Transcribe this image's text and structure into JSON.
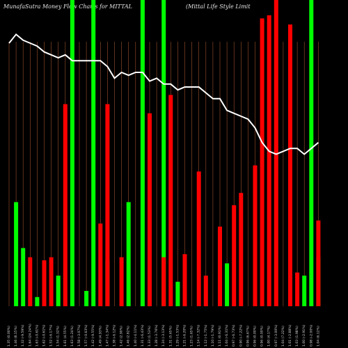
{
  "title_left": "MunafaSutra  Money Flow  Charts for MITTAL",
  "title_right": "(Mittal Life   Style   Limit",
  "colors": {
    "background": "#000000",
    "up": "#00ff00",
    "down": "#ff0000",
    "grid": "#a0522d",
    "line": "#ffffff",
    "label": "#d9d9d9"
  },
  "chart_data": {
    "type": "bar",
    "y_axis": "none",
    "ylim": [
      0,
      100
    ],
    "line_ylim": [
      0,
      100
    ],
    "grid": "vertical",
    "categories": [
      "1.35 (0.00%)",
      "1.46 (8.15%)",
      "1.32 (-9.59%)",
      "1.64 (24.24%)",
      "1.63 (-0.61%)",
      "1.62 (-0.61%)",
      "1.52 (-6.17%)",
      "1.54 (1.32%)",
      "1.61 (4.55%)",
      "1.63 (1.24%)",
      "1.58 (-3.07%)",
      "1.57 (-0.63%)",
      "1.42 (-9.55%)",
      "1.49 (4.93%)",
      "1.47 (-1.34%)",
      "1.38 (-6.12%)",
      "1.42 (2.90%)",
      "1.46 (2.82%)",
      "1.40 (-4.11%)",
      "1.31 (-6.43%)",
      "1.33 (1.53%)",
      "1.28 (-3.76%)",
      "1.24 (-3.13%)",
      "1.31 (5.65%)",
      "1.29 (-1.53%)",
      "1.21 (-6.20%)",
      "1.23 (1.65%)",
      "1.14 (-7.32%)",
      "1.12 (-1.75%)",
      "1.10 (-1.79%)",
      "1.11 (0.91%)",
      "1.04 (-6.31%)",
      "0.97 (-6.73%)",
      "0.90 (-7.22%)",
      "0.96 (6.67%)",
      "0.96 (0.00%)",
      "0.96 (0.00%)",
      "1.00 (4.17%)",
      "0.97 (-3.00%)",
      "1.04 (7.22%)",
      "1.01 (-2.88%)",
      "1.03 (1.98%)",
      "1.00 (-2.91%)",
      "0.98 (-2.00%)",
      "1.04 (6.12%)"
    ],
    "series": [
      {
        "kind": "up_bars",
        "values": [
          null,
          34,
          19,
          null,
          3,
          null,
          null,
          10,
          null,
          100,
          null,
          5,
          100,
          null,
          15,
          null,
          null,
          34,
          null,
          100,
          null,
          null,
          100,
          null,
          8,
          null,
          null,
          null,
          null,
          null,
          null,
          14,
          null,
          null,
          null,
          null,
          null,
          null,
          null,
          null,
          null,
          null,
          10,
          100,
          16
        ]
      },
      {
        "kind": "down_bars",
        "values": [
          null,
          null,
          null,
          16,
          null,
          15,
          16,
          null,
          66,
          null,
          null,
          null,
          null,
          27,
          66,
          null,
          16,
          null,
          null,
          null,
          63,
          null,
          16,
          69,
          null,
          17,
          null,
          44,
          10,
          null,
          26,
          null,
          33,
          37,
          null,
          46,
          94,
          95,
          100,
          null,
          92,
          11,
          null,
          null,
          28
        ]
      },
      {
        "kind": "line",
        "values": [
          90,
          93,
          91,
          90,
          89,
          87,
          86,
          85,
          86,
          84,
          84,
          84,
          84,
          84,
          82,
          78,
          80,
          79,
          80,
          80,
          77,
          78,
          76,
          76,
          74,
          75,
          75,
          75,
          73,
          71,
          71,
          67,
          66,
          65,
          64,
          61,
          56,
          53,
          52,
          53,
          54,
          54,
          52,
          54,
          56
        ]
      }
    ]
  }
}
